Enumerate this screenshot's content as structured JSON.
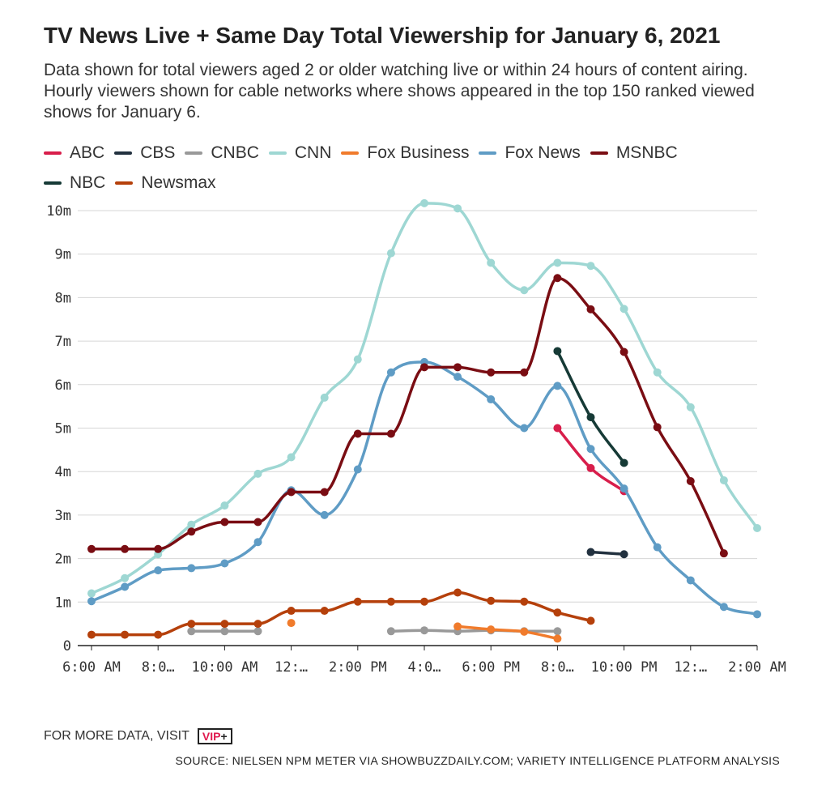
{
  "title": "TV News Live + Same Day Total Viewership for January 6, 2021",
  "subtitle": "Data shown for total viewers aged 2 or older watching live or within 24 hours of content airing. Hourly viewers shown for cable networks where shows appeared in the top 150 ranked viewed shows for January 6.",
  "footer": {
    "visit_text": "FOR MORE DATA, VISIT",
    "badge_vip": "VIP",
    "badge_plus": "+",
    "source": "SOURCE: NIELSEN NPM METER VIA SHOWBUZZDAILY.COM; VARIETY INTELLIGENCE PLATFORM ANALYSIS"
  },
  "chart_data": {
    "type": "line",
    "x_tick_labels": [
      "6:00 AM",
      "8:0…",
      "10:00 AM",
      "12:…",
      "2:00 PM",
      "4:0…",
      "6:00 PM",
      "8:0…",
      "10:00 PM",
      "12:…",
      "2:00 AM"
    ],
    "x_ticks_hours": [
      6,
      8,
      10,
      12,
      14,
      16,
      18,
      20,
      22,
      24,
      26
    ],
    "x_range_hours": [
      6,
      27
    ],
    "y_tick_labels": [
      "0",
      "1m",
      "2m",
      "3m",
      "4m",
      "5m",
      "6m",
      "7m",
      "8m",
      "9m",
      "10m"
    ],
    "ylim": [
      0,
      10
    ],
    "y_unit": "millions of viewers",
    "grid": true,
    "legend_position": "top",
    "series": [
      {
        "name": "ABC",
        "color": "#d81e4b",
        "points": [
          [
            20,
            5.0
          ],
          [
            21,
            4.08
          ],
          [
            22,
            3.55
          ]
        ]
      },
      {
        "name": "CBS",
        "color": "#22313f",
        "points": [
          [
            21,
            2.15
          ],
          [
            22,
            2.1
          ]
        ]
      },
      {
        "name": "CNBC",
        "color": "#999999",
        "points": [
          [
            9,
            0.33
          ],
          [
            10,
            0.33
          ],
          [
            11,
            0.33
          ],
          [
            15,
            0.33
          ],
          [
            16,
            0.35
          ],
          [
            17,
            0.33
          ],
          [
            18,
            0.35
          ],
          [
            19,
            0.33
          ],
          [
            20,
            0.33
          ]
        ]
      },
      {
        "name": "CNN",
        "color": "#9ed7d3",
        "points": [
          [
            6,
            1.2
          ],
          [
            7,
            1.55
          ],
          [
            8,
            2.1
          ],
          [
            9,
            2.78
          ],
          [
            10,
            3.22
          ],
          [
            11,
            3.95
          ],
          [
            12,
            4.33
          ],
          [
            13,
            5.7
          ],
          [
            14,
            6.58
          ],
          [
            15,
            9.02
          ],
          [
            16,
            10.17
          ],
          [
            17,
            10.05
          ],
          [
            18,
            8.8
          ],
          [
            19,
            8.17
          ],
          [
            20,
            8.8
          ],
          [
            21,
            8.73
          ],
          [
            22,
            7.74
          ],
          [
            23,
            6.28
          ],
          [
            24,
            5.48
          ],
          [
            25,
            3.8
          ],
          [
            26,
            2.7
          ]
        ]
      },
      {
        "name": "Fox Business",
        "color": "#f07b2c",
        "points": [
          [
            12,
            0.52
          ],
          [
            17,
            0.44
          ],
          [
            18,
            0.37
          ],
          [
            19,
            0.32
          ],
          [
            20,
            0.16
          ]
        ]
      },
      {
        "name": "Fox News",
        "color": "#5f9cc5",
        "points": [
          [
            6,
            1.02
          ],
          [
            7,
            1.35
          ],
          [
            8,
            1.73
          ],
          [
            9,
            1.78
          ],
          [
            10,
            1.89
          ],
          [
            11,
            2.38
          ],
          [
            12,
            3.57
          ],
          [
            13,
            3.0
          ],
          [
            14,
            4.05
          ],
          [
            15,
            6.28
          ],
          [
            16,
            6.52
          ],
          [
            17,
            6.18
          ],
          [
            18,
            5.66
          ],
          [
            19,
            5.0
          ],
          [
            20,
            5.97
          ],
          [
            21,
            4.52
          ],
          [
            22,
            3.61
          ],
          [
            23,
            2.26
          ],
          [
            24,
            1.5
          ],
          [
            25,
            0.89
          ],
          [
            26,
            0.72
          ]
        ]
      },
      {
        "name": "MSNBC",
        "color": "#7a0d13",
        "points": [
          [
            6,
            2.22
          ],
          [
            7,
            2.22
          ],
          [
            8,
            2.22
          ],
          [
            9,
            2.62
          ],
          [
            10,
            2.84
          ],
          [
            11,
            2.84
          ],
          [
            12,
            3.53
          ],
          [
            13,
            3.53
          ],
          [
            14,
            4.87
          ],
          [
            15,
            4.87
          ],
          [
            16,
            6.4
          ],
          [
            17,
            6.4
          ],
          [
            18,
            6.28
          ],
          [
            19,
            6.28
          ],
          [
            20,
            8.45
          ],
          [
            21,
            7.73
          ],
          [
            22,
            6.75
          ],
          [
            23,
            5.02
          ],
          [
            24,
            3.78
          ],
          [
            25,
            2.12
          ]
        ]
      },
      {
        "name": "NBC",
        "color": "#163a36",
        "points": [
          [
            20,
            6.77
          ],
          [
            21,
            5.25
          ],
          [
            22,
            4.2
          ]
        ]
      },
      {
        "name": "Newsmax",
        "color": "#b5400b",
        "points": [
          [
            6,
            0.25
          ],
          [
            7,
            0.25
          ],
          [
            8,
            0.25
          ],
          [
            9,
            0.5
          ],
          [
            10,
            0.5
          ],
          [
            11,
            0.5
          ],
          [
            12,
            0.8
          ],
          [
            13,
            0.8
          ],
          [
            14,
            1.01
          ],
          [
            15,
            1.01
          ],
          [
            16,
            1.01
          ],
          [
            17,
            1.22
          ],
          [
            18,
            1.03
          ],
          [
            19,
            1.01
          ],
          [
            20,
            0.76
          ],
          [
            21,
            0.57
          ]
        ]
      }
    ]
  }
}
